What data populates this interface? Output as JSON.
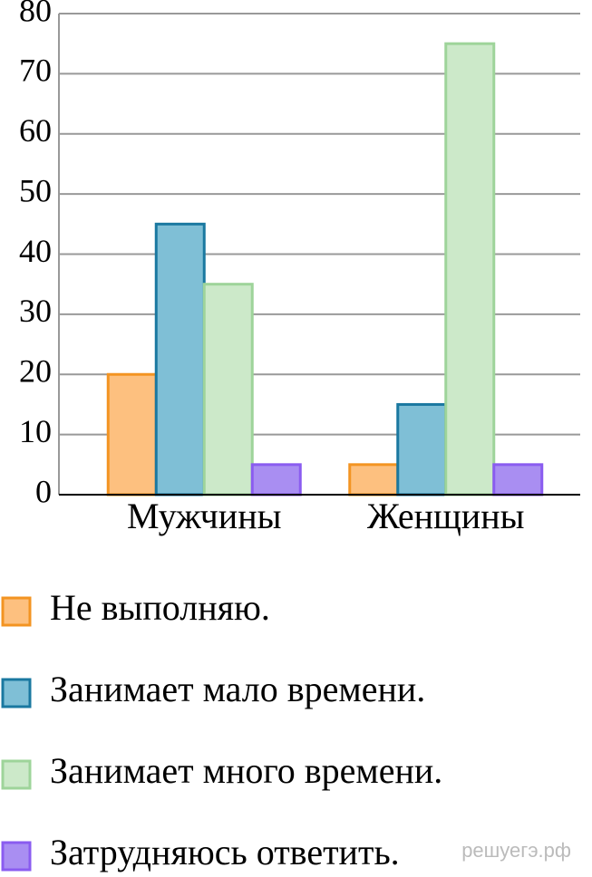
{
  "chart_data": {
    "type": "bar",
    "categories": [
      "Мужчины",
      "Женщины"
    ],
    "series": [
      {
        "name": "Не выполняю.",
        "color": "#fdc07f",
        "stroke": "#f39422",
        "values": [
          20,
          5
        ]
      },
      {
        "name": "Занимает мало времени.",
        "color": "#7fbfd6",
        "stroke": "#1a78a0",
        "values": [
          45,
          15
        ]
      },
      {
        "name": "Занимает много времени.",
        "color": "#cce9c9",
        "stroke": "#9ed49a",
        "values": [
          35,
          75
        ]
      },
      {
        "name": "Затрудняюсь ответить.",
        "color": "#a98ef2",
        "stroke": "#8a5cf0",
        "values": [
          5,
          5
        ]
      }
    ],
    "ylim": [
      0,
      80
    ],
    "yticks": [
      0,
      10,
      20,
      30,
      40,
      50,
      60,
      70,
      80
    ],
    "grid": true,
    "watermark": "решуегэ.рф"
  }
}
